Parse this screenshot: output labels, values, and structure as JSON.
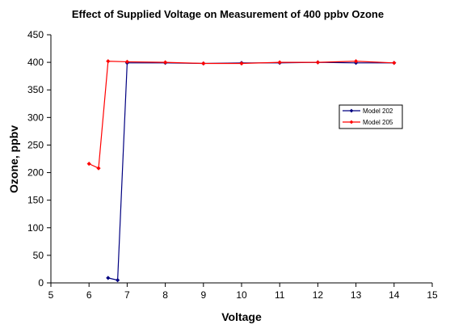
{
  "chart_data": {
    "type": "line",
    "title": "Effect of Supplied Voltage on Measurement of 400 ppbv Ozone",
    "xlabel": "Voltage",
    "ylabel": "Ozone, ppbv",
    "xlim": [
      5,
      15
    ],
    "ylim": [
      0,
      450
    ],
    "x_ticks": [
      "5",
      "6",
      "7",
      "8",
      "9",
      "10",
      "11",
      "12",
      "13",
      "14",
      "15"
    ],
    "y_ticks": [
      "0",
      "50",
      "100",
      "150",
      "200",
      "250",
      "300",
      "350",
      "400",
      "450"
    ],
    "grid": false,
    "legend_position": "right",
    "series": [
      {
        "name": "Model 202",
        "color": "#000080",
        "marker": "diamond",
        "points": [
          [
            6.5,
            9
          ],
          [
            6.75,
            5
          ],
          [
            7,
            399
          ],
          [
            8,
            399
          ],
          [
            9,
            398
          ],
          [
            10,
            399
          ],
          [
            11,
            399
          ],
          [
            12,
            400
          ],
          [
            13,
            399
          ],
          [
            14,
            399
          ]
        ]
      },
      {
        "name": "Model 205",
        "color": "#FF0000",
        "marker": "diamond",
        "points": [
          [
            6,
            216
          ],
          [
            6.25,
            208
          ],
          [
            6.5,
            402
          ],
          [
            7,
            401
          ],
          [
            8,
            400
          ],
          [
            9,
            398
          ],
          [
            10,
            398
          ],
          [
            11,
            400
          ],
          [
            12,
            400
          ],
          [
            13,
            402
          ],
          [
            14,
            399
          ]
        ]
      }
    ]
  }
}
